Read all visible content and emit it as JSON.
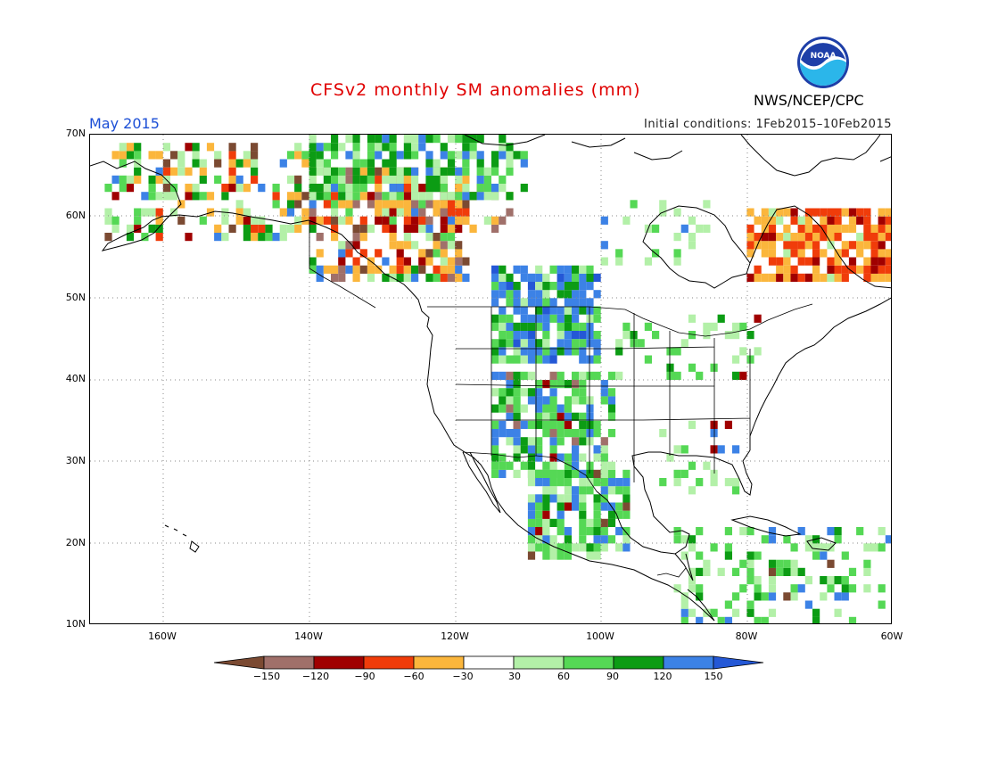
{
  "header": {
    "title": "CFSv2 monthly SM anomalies (mm)",
    "month": "May 2015",
    "initial_conditions": "Initial conditions: 1Feb2015–10Feb2015",
    "agency": "NWS/NCEP/CPC",
    "logo_text": "NOAA"
  },
  "map": {
    "lon_range": [
      -170,
      -60
    ],
    "lat_range": [
      10,
      70
    ],
    "lat_labels": [
      "70N",
      "60N",
      "50N",
      "40N",
      "30N",
      "20N",
      "10N"
    ],
    "lon_labels": [
      "160W",
      "140W",
      "120W",
      "100W",
      "80W",
      "60W"
    ]
  },
  "legend": {
    "bins": [
      {
        "range": "< -150",
        "color": "#7b4a32"
      },
      {
        "range": "-150 to -120",
        "color": "#a0706a"
      },
      {
        "range": "-120 to -90",
        "color": "#a00000"
      },
      {
        "range": "-90 to -60",
        "color": "#f03c0a"
      },
      {
        "range": "-60 to -30",
        "color": "#fbb63c"
      },
      {
        "range": "-30 to 30",
        "color": "#ffffff"
      },
      {
        "range": "30 to 60",
        "color": "#b3f0a8"
      },
      {
        "range": "60 to 90",
        "color": "#55d855"
      },
      {
        "range": "90 to 120",
        "color": "#0c9c14"
      },
      {
        "range": "120 to 150",
        "color": "#3c82e6"
      },
      {
        "range": "> 150",
        "color": "#2458d6"
      }
    ],
    "ticks": [
      "−150",
      "−120",
      "−90",
      "−60",
      "−30",
      "30",
      "60",
      "90",
      "120",
      "150"
    ]
  }
}
